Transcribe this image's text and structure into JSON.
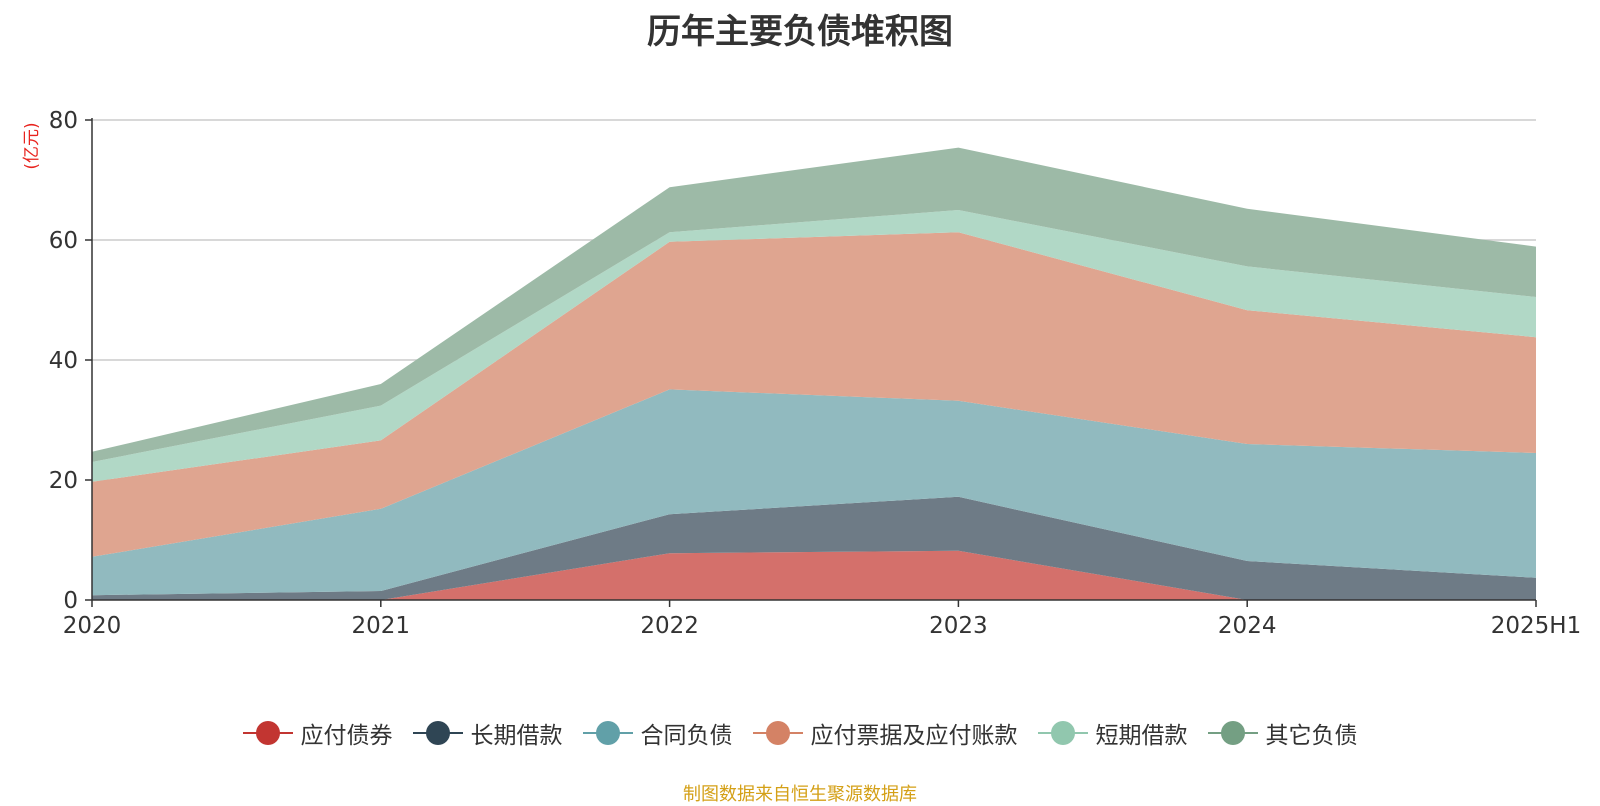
{
  "chart_data": {
    "type": "area",
    "stacked": true,
    "title": "历年主要负债堆积图",
    "unit_label": "(亿元)",
    "categories": [
      "2020",
      "2021",
      "2022",
      "2023",
      "2024",
      "2025H1"
    ],
    "ylim": [
      0,
      80
    ],
    "yticks": [
      0,
      20,
      40,
      60,
      80
    ],
    "grid": true,
    "legend_position": "bottom",
    "series": [
      {
        "name": "应付债券",
        "color": "#c23531",
        "fill": "#d4706b",
        "values": [
          0,
          0,
          7.8,
          8.2,
          0,
          0
        ]
      },
      {
        "name": "长期借款",
        "color": "#2f4554",
        "fill": "#6e7b86",
        "values": [
          0.8,
          1.5,
          6.5,
          9.0,
          6.5,
          3.7
        ]
      },
      {
        "name": "合同负债",
        "color": "#61a0a8",
        "fill": "#91babf",
        "values": [
          6.4,
          13.7,
          20.8,
          16.0,
          19.5,
          20.8
        ]
      },
      {
        "name": "应付票据及应付账款",
        "color": "#d48265",
        "fill": "#dfa590",
        "values": [
          12.5,
          11.4,
          24.6,
          28.1,
          22.3,
          19.3
        ]
      },
      {
        "name": "短期借款",
        "color": "#91c7ae",
        "fill": "#b1d8c6",
        "values": [
          3.3,
          5.8,
          1.6,
          3.7,
          7.3,
          6.7
        ]
      },
      {
        "name": "其它负债",
        "color": "#749f83",
        "fill": "#9dbaa7",
        "values": [
          1.7,
          3.6,
          7.5,
          10.4,
          9.6,
          8.4
        ]
      }
    ]
  },
  "source_note": "制图数据来自恒生聚源数据库"
}
